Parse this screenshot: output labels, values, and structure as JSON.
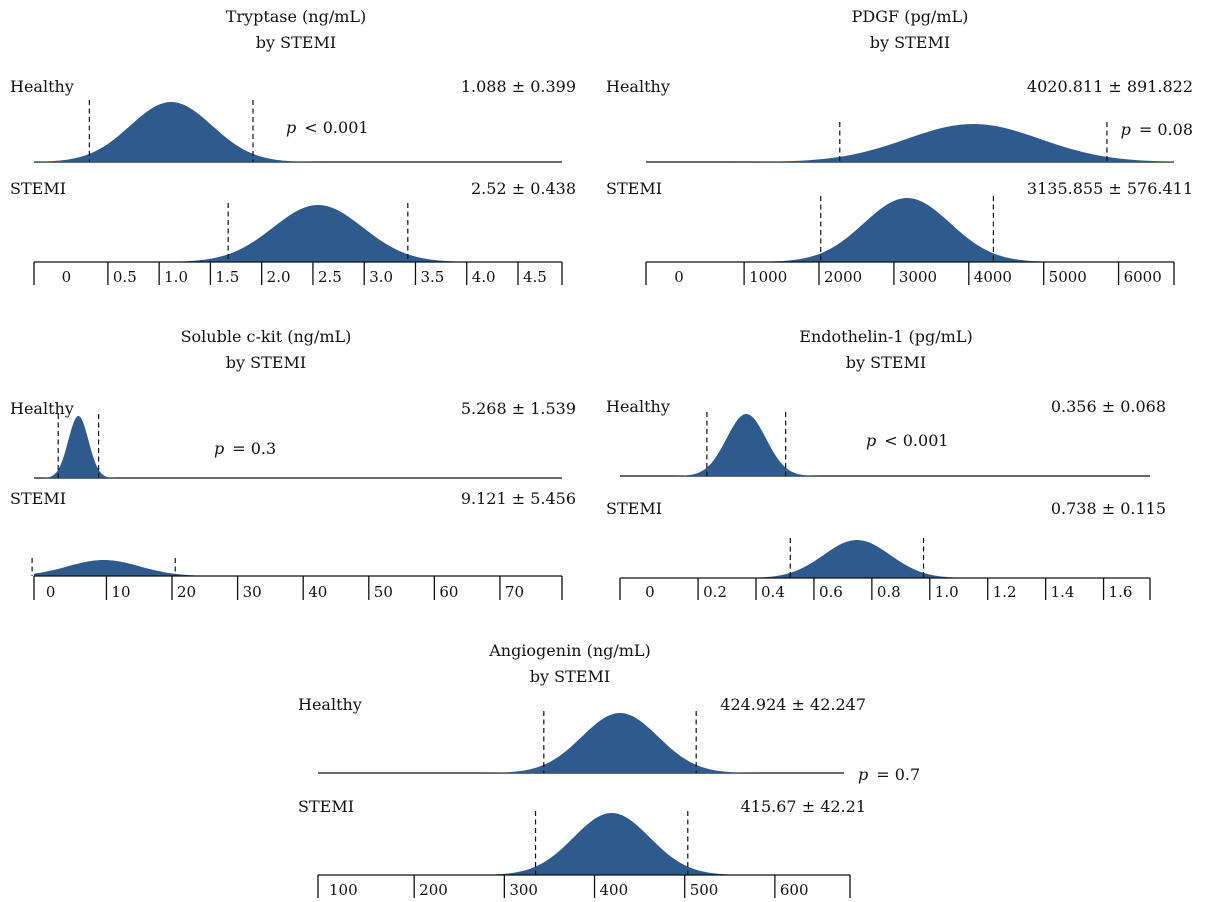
{
  "colors": {
    "curve_fill": "#2F5A8E",
    "line": "#111111"
  },
  "chart_data": [
    {
      "type": "area",
      "title": "Tryptase (ng/mL)",
      "subtitle": "by STEMI",
      "xlim": [
        -0.25,
        4.9
      ],
      "ticks": [
        "0",
        "0.5",
        "1.0",
        "1.5",
        "2.0",
        "2.5",
        "3.0",
        "3.5",
        "4.0",
        "4.5"
      ],
      "tick_values": [
        0,
        0.5,
        1.0,
        1.5,
        2.0,
        2.5,
        3.0,
        3.5,
        4.0,
        4.5
      ],
      "p_label": "p",
      "p_value": "< 0.001",
      "series": [
        {
          "name": "Healthy",
          "stat": "1.088 ± 0.399",
          "mean": 1.088,
          "sd": 0.399
        },
        {
          "name": "STEMI",
          "stat": "2.52 ± 0.438",
          "mean": 2.52,
          "sd": 0.438
        }
      ]
    },
    {
      "type": "area",
      "title": "PDGF (pg/mL)",
      "subtitle": "by STEMI",
      "xlim": [
        -350,
        6700
      ],
      "ticks": [
        "0",
        "1000",
        "2000",
        "3000",
        "4000",
        "5000",
        "6000"
      ],
      "tick_values": [
        0,
        1000,
        2000,
        3000,
        4000,
        5000,
        6000
      ],
      "p_label": "p",
      "p_value": "= 0.08",
      "series": [
        {
          "name": "Healthy",
          "stat": "4020.811 ± 891.822",
          "mean": 4020.811,
          "sd": 891.822
        },
        {
          "name": "STEMI",
          "stat": "3135.855 ± 576.411",
          "mean": 3135.855,
          "sd": 576.411
        }
      ]
    },
    {
      "type": "area",
      "title": "Soluble c-kit (ng/mL)",
      "subtitle": "by STEMI",
      "xlim": [
        -1.5,
        79
      ],
      "ticks": [
        "0",
        "10",
        "20",
        "30",
        "40",
        "50",
        "60",
        "70"
      ],
      "tick_values": [
        0,
        10,
        20,
        30,
        40,
        50,
        60,
        70
      ],
      "p_label": "p",
      "p_value": "= 0.3",
      "series": [
        {
          "name": "Healthy",
          "stat": "5.268 ± 1.539",
          "mean": 5.268,
          "sd": 1.539
        },
        {
          "name": "STEMI",
          "stat": "9.121 ± 5.456",
          "mean": 9.121,
          "sd": 5.456
        }
      ]
    },
    {
      "type": "area",
      "title": "Endothelin-1 (pg/mL)",
      "subtitle": "by STEMI",
      "xlim": [
        -0.08,
        1.75
      ],
      "ticks": [
        "0",
        "0.2",
        "0.4",
        "0.6",
        "0.8",
        "1.0",
        "1.2",
        "1.4",
        "1.6"
      ],
      "tick_values": [
        0,
        0.2,
        0.4,
        0.6,
        0.8,
        1.0,
        1.2,
        1.4,
        1.6
      ],
      "p_label": "p",
      "p_value": "< 0.001",
      "series": [
        {
          "name": "Healthy",
          "stat": "0.356 ± 0.068",
          "mean": 0.356,
          "sd": 0.068
        },
        {
          "name": "STEMI",
          "stat": "0.738 ± 0.115",
          "mean": 0.738,
          "sd": 0.115
        }
      ]
    },
    {
      "type": "area",
      "title": "Angiogenin (ng/mL)",
      "subtitle": "by STEMI",
      "xlim": [
        90,
        680
      ],
      "ticks": [
        "100",
        "200",
        "300",
        "400",
        "500",
        "600"
      ],
      "tick_values": [
        100,
        200,
        300,
        400,
        500,
        600
      ],
      "p_label": "p",
      "p_value": "= 0.7",
      "series": [
        {
          "name": "Healthy",
          "stat": "424.924 ± 42.247",
          "mean": 424.924,
          "sd": 42.247
        },
        {
          "name": "STEMI",
          "stat": "415.67 ± 42.21",
          "mean": 415.67,
          "sd": 42.21
        }
      ]
    }
  ]
}
